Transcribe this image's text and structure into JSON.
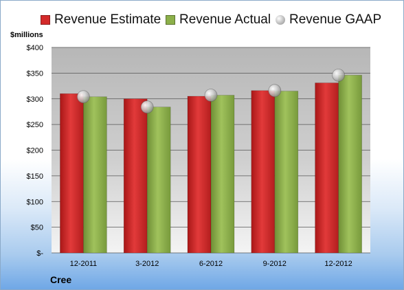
{
  "chart_data": {
    "type": "bar",
    "title": "",
    "unit_label": "$millions",
    "company": "Cree",
    "categories": [
      "12-2011",
      "3-2012",
      "6-2012",
      "9-2012",
      "12-2012"
    ],
    "y_ticks": [
      "$-",
      "$50",
      "$100",
      "$150",
      "$200",
      "$250",
      "$300",
      "$350",
      "$400"
    ],
    "ylim": [
      0,
      400
    ],
    "grid": true,
    "legend_position": "top",
    "series": [
      {
        "name": "Revenue Estimate",
        "kind": "bar",
        "color": "#d42a2a",
        "values": [
          310,
          300,
          305,
          316,
          331
        ]
      },
      {
        "name": "Revenue Actual",
        "kind": "bar",
        "color": "#8cb04a",
        "values": [
          304,
          284,
          307,
          315,
          346
        ]
      },
      {
        "name": "Revenue GAAP",
        "kind": "marker",
        "color": "#b5b5b5",
        "values": [
          304,
          284,
          307,
          316,
          346
        ]
      }
    ]
  }
}
